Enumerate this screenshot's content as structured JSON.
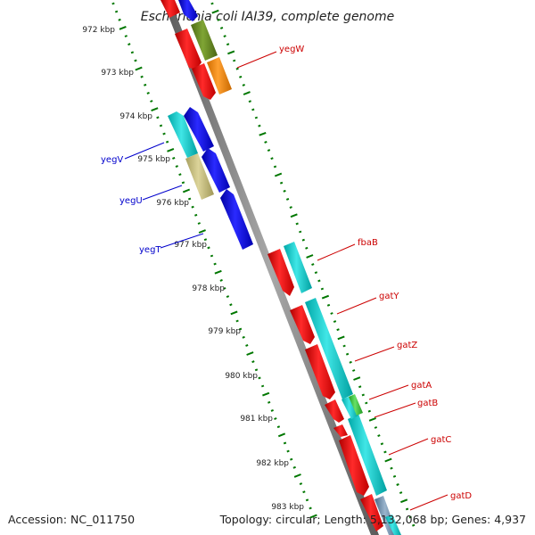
{
  "title": "Escherichia coli IAI39, complete genome",
  "footer": {
    "accession": "Accession: NC_011750",
    "stats": "Topology: circular; Length: 5,132,068 bp; Genes: 4,937"
  },
  "kbp_labels": [
    "972 kbp",
    "973 kbp",
    "974 kbp",
    "975 kbp",
    "976 kbp",
    "977 kbp",
    "978 kbp",
    "979 kbp",
    "980 kbp",
    "981 kbp",
    "982 kbp",
    "983 kbp"
  ],
  "genes_minus": [
    {
      "label": "yegV",
      "color": "#0000cc"
    },
    {
      "label": "yegU",
      "color": "#0000cc"
    },
    {
      "label": "yegT",
      "color": "#0000cc"
    }
  ],
  "genes_plus": [
    {
      "label": "yegW",
      "color": "#cc0000"
    },
    {
      "label": "fbaB",
      "color": "#cc0000"
    },
    {
      "label": "gatY",
      "color": "#cc0000"
    },
    {
      "label": "gatZ",
      "color": "#cc0000"
    },
    {
      "label": "gatA",
      "color": "#cc0000"
    },
    {
      "label": "gatB",
      "color": "#cc0000"
    },
    {
      "label": "gatC",
      "color": "#cc0000"
    },
    {
      "label": "gatD",
      "color": "#cc0000"
    }
  ],
  "colors": {
    "backbone": "#8c8c8c",
    "tick": "#007700",
    "cds_red": "#ff0000",
    "cds_blue": "#0000ff",
    "cds_cyan": "#1fd0d0",
    "cds_khaki": "#c8c084",
    "cds_olive": "#6b8e23",
    "cds_orange": "#ff8c00",
    "cds_green": "#33cc33",
    "cds_steel": "#6f8faf"
  }
}
